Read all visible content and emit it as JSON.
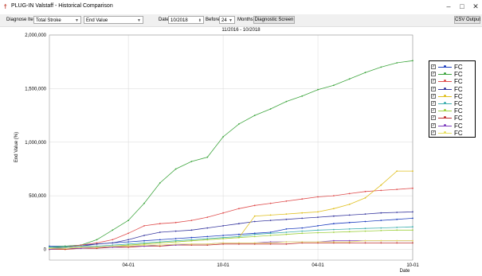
{
  "window": {
    "title": "PLUG-IN Valstaff - Historical Comparison",
    "controls": [
      "–",
      "□",
      "✕"
    ]
  },
  "toolbar": {
    "diagnose_label": "Diagnose Item",
    "diagnose_value": "Total Stroke",
    "item_value": "End Value",
    "date_label": "Date",
    "date_value": "10/2018",
    "before_label": "Before",
    "months_value": "24",
    "months_label": "Months",
    "diagnostic_button": "Diagnostic Screen",
    "csv_button": "CSV Output"
  },
  "chart_data": {
    "type": "line",
    "subtitle": "11/2016 - 10/2018",
    "xlabel": "Date",
    "ylabel": "End Value (%)",
    "ylim": [
      -100000,
      2000000
    ],
    "yticks": [
      0,
      500000,
      1000000,
      1500000,
      2000000
    ],
    "ytick_labels": [
      "0",
      "500,000",
      "1,000,000",
      "1,500,000",
      "2,000,000"
    ],
    "xlim": [
      0,
      23
    ],
    "xticks": [
      5,
      11,
      17,
      23
    ],
    "xtick_labels": [
      "04-01",
      "10-01",
      "04-01",
      "10-01"
    ],
    "grid": true,
    "legend_position": "right",
    "series": [
      {
        "name": "FC",
        "color": "#1f3fbf",
        "values": [
          30000,
          30000,
          40000,
          50000,
          60000,
          70000,
          80000,
          90000,
          100000,
          110000,
          120000,
          130000,
          140000,
          150000,
          160000,
          190000,
          200000,
          220000,
          240000,
          250000,
          260000,
          270000,
          280000,
          290000
        ]
      },
      {
        "name": "FC",
        "color": "#3fa63f",
        "values": [
          20000,
          30000,
          40000,
          90000,
          180000,
          270000,
          430000,
          620000,
          750000,
          820000,
          860000,
          1050000,
          1170000,
          1250000,
          1310000,
          1380000,
          1430000,
          1490000,
          1530000,
          1590000,
          1650000,
          1700000,
          1740000,
          1760000
        ]
      },
      {
        "name": "FC",
        "color": "#e05050",
        "values": [
          0,
          20000,
          40000,
          60000,
          90000,
          150000,
          220000,
          240000,
          250000,
          270000,
          300000,
          340000,
          380000,
          410000,
          430000,
          450000,
          470000,
          490000,
          500000,
          520000,
          540000,
          550000,
          560000,
          570000
        ]
      },
      {
        "name": "FC",
        "color": "#3a3aa0",
        "values": [
          10000,
          20000,
          30000,
          50000,
          60000,
          90000,
          130000,
          160000,
          170000,
          180000,
          200000,
          220000,
          240000,
          260000,
          270000,
          280000,
          290000,
          300000,
          310000,
          320000,
          330000,
          340000,
          345000,
          350000
        ]
      },
      {
        "name": "FC",
        "color": "#e0c020",
        "values": [
          0,
          0,
          10000,
          20000,
          30000,
          40000,
          50000,
          60000,
          70000,
          80000,
          90000,
          100000,
          110000,
          310000,
          320000,
          330000,
          340000,
          350000,
          380000,
          420000,
          480000,
          600000,
          730000,
          730000
        ]
      },
      {
        "name": "FC",
        "color": "#40b0b0",
        "values": [
          20000,
          20000,
          30000,
          30000,
          40000,
          50000,
          60000,
          70000,
          80000,
          90000,
          100000,
          110000,
          120000,
          140000,
          150000,
          160000,
          170000,
          180000,
          185000,
          190000,
          195000,
          200000,
          205000,
          210000
        ]
      },
      {
        "name": "FC",
        "color": "#a0d040",
        "values": [
          10000,
          10000,
          20000,
          20000,
          30000,
          40000,
          50000,
          60000,
          70000,
          80000,
          90000,
          100000,
          110000,
          120000,
          130000,
          140000,
          150000,
          155000,
          160000,
          165000,
          170000,
          175000,
          180000,
          180000
        ]
      },
      {
        "name": "FC",
        "color": "#c03030",
        "values": [
          0,
          0,
          10000,
          10000,
          20000,
          20000,
          30000,
          30000,
          40000,
          40000,
          40000,
          50000,
          50000,
          50000,
          50000,
          50000,
          60000,
          60000,
          60000,
          60000,
          60000,
          60000,
          60000,
          60000
        ]
      },
      {
        "name": "FC",
        "color": "#8040c0",
        "values": [
          0,
          10000,
          10000,
          20000,
          20000,
          30000,
          30000,
          40000,
          40000,
          50000,
          50000,
          60000,
          60000,
          60000,
          70000,
          70000,
          70000,
          70000,
          80000,
          80000,
          80000,
          80000,
          80000,
          80000
        ]
      },
      {
        "name": "FC",
        "color": "#e8e060",
        "values": [
          10000,
          10000,
          20000,
          20000,
          30000,
          30000,
          40000,
          40000,
          50000,
          50000,
          50000,
          60000,
          60000,
          60000,
          60000,
          70000,
          70000,
          70000,
          70000,
          70000,
          80000,
          80000,
          80000,
          80000
        ]
      }
    ]
  }
}
